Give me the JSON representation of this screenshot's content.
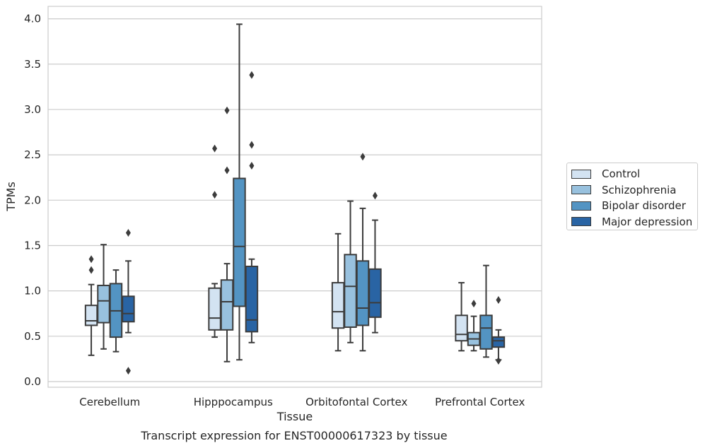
{
  "caption": "Transcript expression for ENST00000617323 by tissue",
  "chart_data": {
    "type": "box",
    "xlabel": "Tissue",
    "ylabel": "TPMs",
    "ylim": [
      -0.05,
      4.15
    ],
    "yticks": [
      "0.0",
      "0.5",
      "1.0",
      "1.5",
      "2.0",
      "2.5",
      "3.0",
      "3.5",
      "4.0"
    ],
    "grid": "horizontal",
    "legend_position": "right",
    "categories": [
      "Cerebellum",
      "Hipppocampus",
      "Orbitofontal Cortex",
      "Prefrontal Cortex"
    ],
    "series": [
      {
        "name": "Control",
        "color": "#d3e3f2",
        "boxes": [
          {
            "whislo": 0.29,
            "q1": 0.62,
            "med": 0.67,
            "q3": 0.84,
            "whishi": 1.07,
            "fliers": [
              1.23,
              1.35
            ]
          },
          {
            "whislo": 0.49,
            "q1": 0.57,
            "med": 0.7,
            "q3": 1.03,
            "whishi": 1.08,
            "fliers": [
              2.06,
              2.57
            ]
          },
          {
            "whislo": 0.34,
            "q1": 0.59,
            "med": 0.77,
            "q3": 1.09,
            "whishi": 1.63,
            "fliers": []
          },
          {
            "whislo": 0.34,
            "q1": 0.45,
            "med": 0.52,
            "q3": 0.73,
            "whishi": 1.09,
            "fliers": []
          }
        ]
      },
      {
        "name": "Schizophrenia",
        "color": "#98c1de",
        "boxes": [
          {
            "whislo": 0.36,
            "q1": 0.65,
            "med": 0.89,
            "q3": 1.06,
            "whishi": 1.51,
            "fliers": []
          },
          {
            "whislo": 0.22,
            "q1": 0.57,
            "med": 0.88,
            "q3": 1.12,
            "whishi": 1.3,
            "fliers": [
              2.33,
              2.99
            ]
          },
          {
            "whislo": 0.43,
            "q1": 0.6,
            "med": 1.05,
            "q3": 1.4,
            "whishi": 1.99,
            "fliers": []
          },
          {
            "whislo": 0.34,
            "q1": 0.4,
            "med": 0.47,
            "q3": 0.54,
            "whishi": 0.72,
            "fliers": [
              0.86
            ]
          }
        ]
      },
      {
        "name": "Bipolar disorder",
        "color": "#5394c3",
        "boxes": [
          {
            "whislo": 0.33,
            "q1": 0.49,
            "med": 0.78,
            "q3": 1.08,
            "whishi": 1.23,
            "fliers": []
          },
          {
            "whislo": 0.24,
            "q1": 0.83,
            "med": 1.49,
            "q3": 2.24,
            "whishi": 3.94,
            "fliers": []
          },
          {
            "whislo": 0.34,
            "q1": 0.62,
            "med": 0.81,
            "q3": 1.33,
            "whishi": 1.91,
            "fliers": [
              2.48
            ]
          },
          {
            "whislo": 0.27,
            "q1": 0.36,
            "med": 0.59,
            "q3": 0.73,
            "whishi": 1.28,
            "fliers": []
          }
        ]
      },
      {
        "name": "Major depression",
        "color": "#2964a4",
        "boxes": [
          {
            "whislo": 0.54,
            "q1": 0.66,
            "med": 0.75,
            "q3": 0.94,
            "whishi": 1.33,
            "fliers": [
              0.12,
              1.64
            ]
          },
          {
            "whislo": 0.43,
            "q1": 0.55,
            "med": 0.68,
            "q3": 1.27,
            "whishi": 1.35,
            "fliers": [
              2.38,
              2.61,
              3.38
            ]
          },
          {
            "whislo": 0.54,
            "q1": 0.71,
            "med": 0.87,
            "q3": 1.24,
            "whishi": 1.78,
            "fliers": [
              2.05
            ]
          },
          {
            "whislo": 0.24,
            "q1": 0.38,
            "med": 0.45,
            "q3": 0.49,
            "whishi": 0.57,
            "fliers": [
              0.23,
              0.9
            ]
          }
        ]
      }
    ]
  }
}
